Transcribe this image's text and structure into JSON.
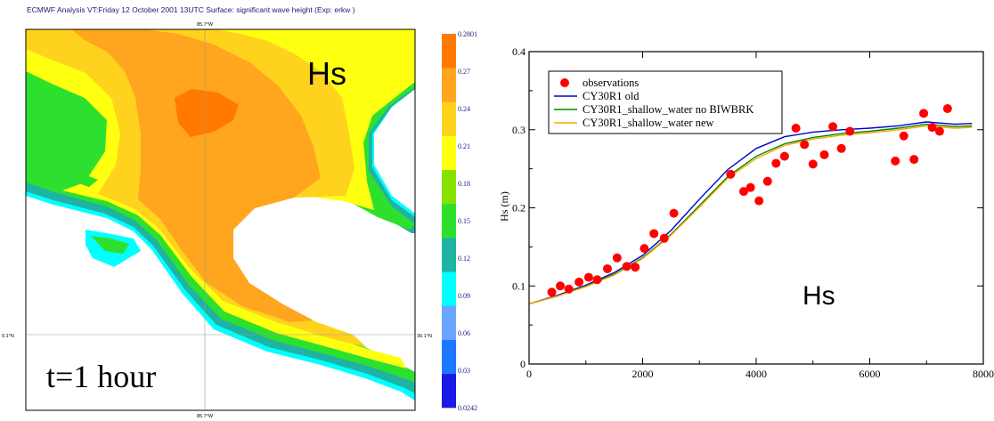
{
  "map_panel": {
    "header": "ECMWF  Analysis VT:Friday 12 October 2001 13UTC Surface: significant wave height (Exp: erkw )",
    "lon_label_top": "85.7°W",
    "lon_label_bottom": "85.7°W",
    "lat_label_left": "0.1°N",
    "lat_label_right": "30.1°N",
    "overlay_label": "Hs",
    "time_label": "t=1 hour",
    "colorbar": {
      "levels": [
        "0.0242",
        "0.03",
        "0.06",
        "0.09",
        "0.12",
        "0.15",
        "0.18",
        "0.21",
        "0.24",
        "0.27",
        "0.2801"
      ],
      "colors": [
        "#1a1ae6",
        "#1e78ff",
        "#6aa6ff",
        "#00ffff",
        "#1fb3a3",
        "#2ee02e",
        "#88e000",
        "#ffff10",
        "#ffd21e",
        "#ffa51e",
        "#ff7a00"
      ]
    }
  },
  "chart_data": {
    "type": "scatter",
    "ylabel": "Hs (m)",
    "xlabel": "",
    "annotation": "Hs",
    "xlim": [
      0,
      8000
    ],
    "ylim": [
      0,
      0.4
    ],
    "xticks": [
      0,
      2000,
      4000,
      6000,
      8000
    ],
    "yticks": [
      0,
      0.1,
      0.2,
      0.3,
      0.4
    ],
    "xtick_labels": [
      "0",
      "2000",
      "4000",
      "6000",
      "8000"
    ],
    "ytick_labels": [
      "0",
      "0.1",
      "0.2",
      "0.3",
      "0.4"
    ],
    "legend_position": "top-left",
    "legend": [
      {
        "label": "observations",
        "color": "#ff0000",
        "kind": "marker"
      },
      {
        "label": "CY30R1  old",
        "color": "#0000cc",
        "kind": "line"
      },
      {
        "label": "CY30R1_shallow_water no BIWBRK",
        "color": "#008800",
        "kind": "line"
      },
      {
        "label": "CY30R1_shallow_water   new",
        "color": "#ffa500",
        "kind": "line"
      }
    ],
    "observations": {
      "name": "observations",
      "color": "#ff0000",
      "x": [
        400,
        550,
        700,
        880,
        1050,
        1200,
        1380,
        1550,
        1720,
        1870,
        2030,
        2200,
        2380,
        2550,
        3550,
        3780,
        3900,
        4050,
        4200,
        4350,
        4500,
        4700,
        4850,
        5000,
        5200,
        5350,
        5500,
        5650,
        6450,
        6600,
        6780,
        6950,
        7100,
        7230,
        7370
      ],
      "y": [
        0.092,
        0.1,
        0.096,
        0.105,
        0.111,
        0.108,
        0.122,
        0.136,
        0.125,
        0.124,
        0.148,
        0.167,
        0.161,
        0.193,
        0.243,
        0.221,
        0.226,
        0.209,
        0.234,
        0.257,
        0.266,
        0.302,
        0.281,
        0.256,
        0.268,
        0.304,
        0.276,
        0.298,
        0.26,
        0.292,
        0.262,
        0.321,
        0.303,
        0.298,
        0.327
      ]
    },
    "series": [
      {
        "name": "CY30R1  old",
        "color": "#0000cc",
        "x": [
          0,
          500,
          1000,
          1500,
          2000,
          2500,
          3000,
          3500,
          4000,
          4500,
          5000,
          5500,
          6000,
          6500,
          7000,
          7500,
          7800
        ],
        "y": [
          0.077,
          0.088,
          0.101,
          0.117,
          0.139,
          0.171,
          0.211,
          0.249,
          0.276,
          0.291,
          0.297,
          0.3,
          0.302,
          0.305,
          0.31,
          0.307,
          0.308
        ]
      },
      {
        "name": "CY30R1_shallow_water no BIWBRK",
        "color": "#008800",
        "x": [
          0,
          500,
          1000,
          1500,
          2000,
          2500,
          3000,
          3500,
          4000,
          4500,
          5000,
          5500,
          6000,
          6500,
          7000,
          7500,
          7800
        ],
        "y": [
          0.077,
          0.087,
          0.1,
          0.115,
          0.136,
          0.166,
          0.203,
          0.24,
          0.266,
          0.282,
          0.29,
          0.295,
          0.298,
          0.302,
          0.307,
          0.304,
          0.305
        ]
      },
      {
        "name": "CY30R1_shallow_water   new",
        "color": "#ffa500",
        "x": [
          0,
          500,
          1000,
          1500,
          2000,
          2500,
          3000,
          3500,
          4000,
          4500,
          5000,
          5500,
          6000,
          6500,
          7000,
          7500,
          7800
        ],
        "y": [
          0.077,
          0.087,
          0.099,
          0.114,
          0.135,
          0.165,
          0.201,
          0.238,
          0.263,
          0.28,
          0.288,
          0.293,
          0.296,
          0.3,
          0.305,
          0.302,
          0.303
        ]
      }
    ]
  }
}
